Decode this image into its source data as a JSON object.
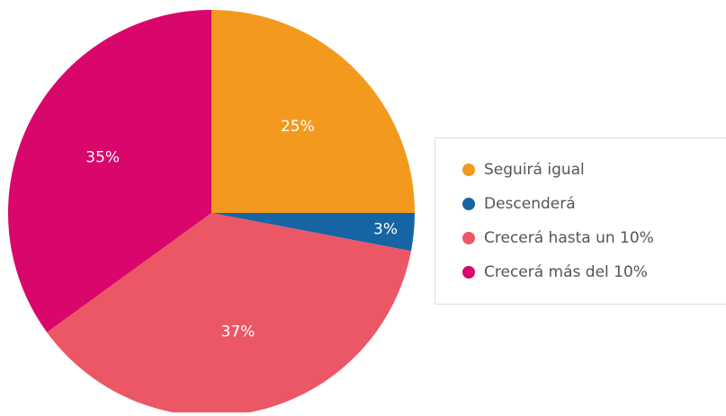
{
  "chart_data": {
    "type": "pie",
    "categories": [
      "Seguirá igual",
      "Descenderá",
      "Crecerá hasta un 10%",
      "Crecerá más del 10%"
    ],
    "values": [
      25,
      3,
      37,
      35
    ],
    "value_labels": [
      "25%",
      "3%",
      "37%",
      "35%"
    ],
    "colors": [
      "#f39a1e",
      "#1565a5",
      "#ec5766",
      "#d9066b"
    ],
    "legend": "right"
  }
}
